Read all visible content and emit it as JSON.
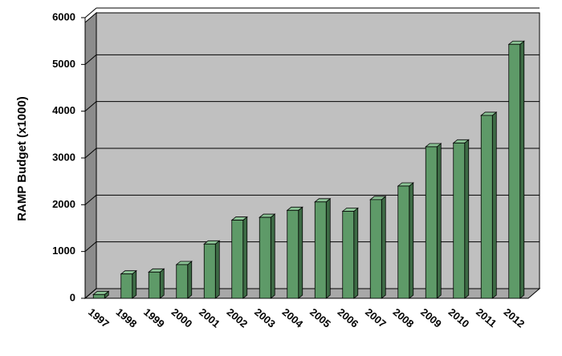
{
  "chart_data": {
    "type": "bar",
    "y_label": "RAMP Budget (x1000)",
    "categories": [
      "1997",
      "1998",
      "1999",
      "2000",
      "2001",
      "2002",
      "2003",
      "2004",
      "2005",
      "2006",
      "2007",
      "2008",
      "2009",
      "2010",
      "2011",
      "2012"
    ],
    "values": [
      80,
      520,
      560,
      720,
      1160,
      1670,
      1730,
      1880,
      2060,
      1860,
      2110,
      2400,
      3240,
      3320,
      3910,
      5430
    ],
    "color": "#5e9a68",
    "ylim": [
      0,
      6000
    ],
    "yticks": [
      0,
      1000,
      2000,
      3000,
      4000,
      5000,
      6000
    ],
    "grid": true
  }
}
